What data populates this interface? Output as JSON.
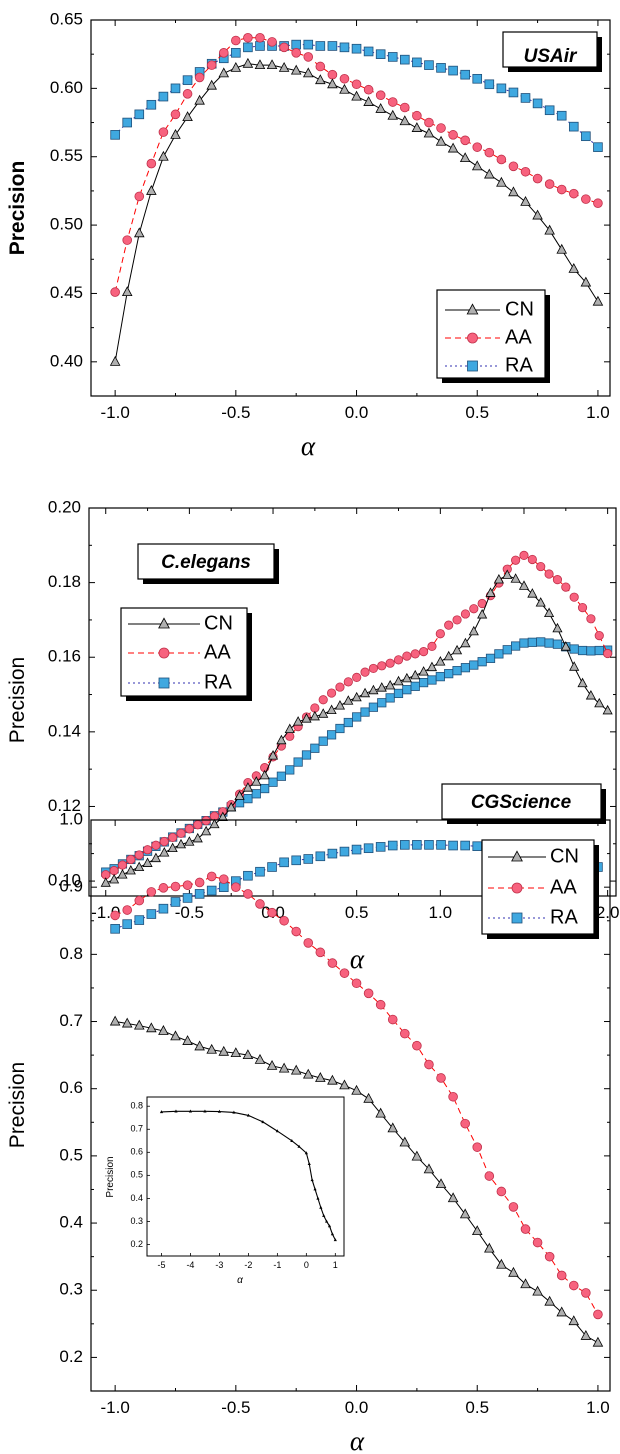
{
  "chart_data": [
    {
      "type": "line",
      "tag": "USAir",
      "xlabel": "α",
      "ylabel": "Precision",
      "xlim": [
        -1.1,
        1.05
      ],
      "ylim": [
        0.375,
        0.65
      ],
      "xticks": [
        -1.0,
        -0.5,
        0.0,
        0.5,
        1.0
      ],
      "xtick_labels": [
        "-1.0",
        "-0.5",
        "0.0",
        "0.5",
        "1.0"
      ],
      "yticks": [
        0.4,
        0.45,
        0.5,
        0.55,
        0.6,
        0.65
      ],
      "ytick_labels": [
        "0.40",
        "0.45",
        "0.50",
        "0.55",
        "0.60",
        "0.65"
      ],
      "legend": [
        "CN",
        "AA",
        "RA"
      ],
      "legend_position": "bottom-right",
      "x": [
        -1.0,
        -0.95,
        -0.9,
        -0.85,
        -0.8,
        -0.75,
        -0.7,
        -0.65,
        -0.6,
        -0.55,
        -0.5,
        -0.45,
        -0.4,
        -0.35,
        -0.3,
        -0.25,
        -0.2,
        -0.15,
        -0.1,
        -0.05,
        0.0,
        0.05,
        0.1,
        0.15,
        0.2,
        0.25,
        0.3,
        0.35,
        0.4,
        0.45,
        0.5,
        0.55,
        0.6,
        0.65,
        0.7,
        0.75,
        0.8,
        0.85,
        0.9,
        0.95,
        1.0
      ],
      "series": [
        {
          "name": "CN",
          "values": [
            0.4,
            0.451,
            0.494,
            0.525,
            0.55,
            0.566,
            0.579,
            0.591,
            0.602,
            0.611,
            0.615,
            0.618,
            0.617,
            0.617,
            0.615,
            0.613,
            0.611,
            0.606,
            0.603,
            0.599,
            0.594,
            0.59,
            0.585,
            0.58,
            0.576,
            0.571,
            0.567,
            0.561,
            0.556,
            0.549,
            0.543,
            0.537,
            0.531,
            0.524,
            0.517,
            0.507,
            0.496,
            0.482,
            0.468,
            0.458,
            0.444
          ]
        },
        {
          "name": "AA",
          "values": [
            0.451,
            0.489,
            0.521,
            0.545,
            0.568,
            0.581,
            0.596,
            0.608,
            0.617,
            0.626,
            0.635,
            0.637,
            0.637,
            0.634,
            0.63,
            0.626,
            0.623,
            0.616,
            0.61,
            0.607,
            0.603,
            0.599,
            0.595,
            0.59,
            0.586,
            0.58,
            0.575,
            0.571,
            0.566,
            0.562,
            0.557,
            0.553,
            0.548,
            0.543,
            0.539,
            0.534,
            0.53,
            0.526,
            0.523,
            0.519,
            0.516
          ]
        },
        {
          "name": "RA",
          "values": [
            0.566,
            0.575,
            0.581,
            0.588,
            0.594,
            0.6,
            0.606,
            0.612,
            0.618,
            0.622,
            0.626,
            0.63,
            0.631,
            0.631,
            0.631,
            0.632,
            0.632,
            0.631,
            0.631,
            0.63,
            0.629,
            0.627,
            0.625,
            0.623,
            0.621,
            0.619,
            0.617,
            0.615,
            0.613,
            0.61,
            0.607,
            0.603,
            0.6,
            0.597,
            0.593,
            0.589,
            0.584,
            0.58,
            0.572,
            0.565,
            0.557
          ]
        }
      ]
    },
    {
      "type": "line",
      "tag": "C.elegans",
      "xlabel": "α",
      "ylabel": "Precision",
      "xlim": [
        -1.1,
        2.05
      ],
      "ylim": [
        0.096,
        0.2
      ],
      "xticks": [
        -1.0,
        -0.5,
        0.0,
        0.5,
        1.0,
        1.5,
        2.0
      ],
      "xtick_labels": [
        "-1.0",
        "-0.5",
        "0.0",
        "0.5",
        "1.0",
        "1.5",
        "2.0"
      ],
      "yticks": [
        0.1,
        0.12,
        0.14,
        0.16,
        0.18,
        0.2
      ],
      "ytick_labels": [
        "0.10",
        "0.12",
        "0.14",
        "0.16",
        "0.18",
        "0.20"
      ],
      "legend": [
        "CN",
        "AA",
        "RA"
      ],
      "legend_position": "top-left",
      "x": [
        -1.0,
        -0.95,
        -0.9,
        -0.85,
        -0.8,
        -0.75,
        -0.7,
        -0.65,
        -0.6,
        -0.55,
        -0.5,
        -0.45,
        -0.4,
        -0.35,
        -0.3,
        -0.25,
        -0.2,
        -0.15,
        -0.1,
        -0.05,
        0.0,
        0.05,
        0.1,
        0.15,
        0.2,
        0.25,
        0.3,
        0.35,
        0.4,
        0.45,
        0.5,
        0.55,
        0.6,
        0.65,
        0.7,
        0.75,
        0.8,
        0.85,
        0.9,
        0.95,
        1.0,
        1.05,
        1.1,
        1.15,
        1.2,
        1.25,
        1.3,
        1.35,
        1.4,
        1.45,
        1.5,
        1.55,
        1.6,
        1.65,
        1.7,
        1.75,
        1.8,
        1.85,
        1.9,
        1.95,
        2.0
      ],
      "series": [
        {
          "name": "CN",
          "values": [
            0.0995,
            0.1004,
            0.1017,
            0.1028,
            0.1037,
            0.1048,
            0.1061,
            0.1076,
            0.1088,
            0.1098,
            0.1105,
            0.1114,
            0.1133,
            0.1152,
            0.1171,
            0.1197,
            0.1228,
            0.125,
            0.1266,
            0.1283,
            0.1336,
            0.1377,
            0.1407,
            0.1427,
            0.1435,
            0.1441,
            0.1448,
            0.1458,
            0.147,
            0.1483,
            0.1492,
            0.1503,
            0.1511,
            0.1518,
            0.1524,
            0.1535,
            0.1543,
            0.1551,
            0.1561,
            0.1573,
            0.1588,
            0.1602,
            0.1618,
            0.1637,
            0.1669,
            0.1714,
            0.1772,
            0.1808,
            0.182,
            0.181,
            0.1791,
            0.177,
            0.1746,
            0.1718,
            0.1677,
            0.1628,
            0.1574,
            0.153,
            0.1497,
            0.1476,
            0.1457
          ]
        },
        {
          "name": "AA",
          "values": [
            0.1017,
            0.1028,
            0.1043,
            0.1058,
            0.107,
            0.1084,
            0.1096,
            0.1106,
            0.1117,
            0.1128,
            0.114,
            0.1151,
            0.1162,
            0.1174,
            0.1186,
            0.1205,
            0.1233,
            0.1264,
            0.1282,
            0.1304,
            0.1333,
            0.1362,
            0.1388,
            0.1414,
            0.144,
            0.1464,
            0.1486,
            0.1504,
            0.152,
            0.1534,
            0.1546,
            0.156,
            0.157,
            0.1577,
            0.1584,
            0.1593,
            0.1603,
            0.1609,
            0.1615,
            0.1629,
            0.1663,
            0.1686,
            0.17,
            0.1716,
            0.173,
            0.1744,
            0.1765,
            0.1799,
            0.1836,
            0.186,
            0.1873,
            0.1862,
            0.1843,
            0.1823,
            0.1808,
            0.1788,
            0.1761,
            0.1733,
            0.1703,
            0.1658,
            0.161
          ]
        },
        {
          "name": "RA",
          "values": [
            0.1024,
            0.1033,
            0.1046,
            0.1058,
            0.1068,
            0.108,
            0.1093,
            0.1105,
            0.1118,
            0.1129,
            0.1141,
            0.1152,
            0.1162,
            0.1175,
            0.1185,
            0.1199,
            0.121,
            0.1221,
            0.1234,
            0.1248,
            0.1265,
            0.1281,
            0.1298,
            0.1319,
            0.1338,
            0.1356,
            0.1375,
            0.1392,
            0.1409,
            0.1425,
            0.144,
            0.1453,
            0.1466,
            0.1478,
            0.1491,
            0.1503,
            0.1513,
            0.1522,
            0.1532,
            0.1539,
            0.1548,
            0.1556,
            0.1564,
            0.1572,
            0.1579,
            0.1588,
            0.1597,
            0.1609,
            0.162,
            0.163,
            0.1638,
            0.164,
            0.1641,
            0.1638,
            0.1635,
            0.1628,
            0.1622,
            0.1618,
            0.1617,
            0.1618,
            0.1619
          ]
        }
      ]
    },
    {
      "type": "line",
      "tag": "CGScience",
      "xlabel": "α",
      "ylabel": "Precision",
      "xlim": [
        -1.1,
        1.05
      ],
      "ylim": [
        0.15,
        1.0
      ],
      "xticks": [
        -1.0,
        -0.5,
        0.0,
        0.5,
        1.0
      ],
      "xtick_labels": [
        "-1.0",
        "-0.5",
        "0.0",
        "0.5",
        "1.0"
      ],
      "yticks": [
        0.2,
        0.3,
        0.4,
        0.5,
        0.6,
        0.7,
        0.8,
        0.9,
        1.0
      ],
      "ytick_labels": [
        "0.2",
        "0.3",
        "0.4",
        "0.5",
        "0.6",
        "0.7",
        "0.8",
        "0.9",
        "1.0"
      ],
      "legend": [
        "CN",
        "AA",
        "RA"
      ],
      "legend_position": "right",
      "x": [
        -1.0,
        -0.95,
        -0.9,
        -0.85,
        -0.8,
        -0.75,
        -0.7,
        -0.65,
        -0.6,
        -0.55,
        -0.5,
        -0.45,
        -0.4,
        -0.35,
        -0.3,
        -0.25,
        -0.2,
        -0.15,
        -0.1,
        -0.05,
        0.0,
        0.05,
        0.1,
        0.15,
        0.2,
        0.25,
        0.3,
        0.35,
        0.4,
        0.45,
        0.5,
        0.55,
        0.6,
        0.65,
        0.7,
        0.75,
        0.8,
        0.85,
        0.9,
        0.95,
        1.0
      ],
      "series": [
        {
          "name": "CN",
          "values": [
            0.7,
            0.697,
            0.694,
            0.69,
            0.686,
            0.678,
            0.671,
            0.663,
            0.658,
            0.655,
            0.653,
            0.65,
            0.643,
            0.634,
            0.63,
            0.627,
            0.621,
            0.616,
            0.612,
            0.605,
            0.597,
            0.585,
            0.563,
            0.541,
            0.52,
            0.499,
            0.48,
            0.458,
            0.437,
            0.413,
            0.388,
            0.362,
            0.338,
            0.326,
            0.309,
            0.298,
            0.283,
            0.267,
            0.254,
            0.232,
            0.222
          ]
        },
        {
          "name": "AA",
          "values": [
            0.858,
            0.866,
            0.88,
            0.893,
            0.899,
            0.901,
            0.903,
            0.907,
            0.916,
            0.912,
            0.9,
            0.89,
            0.875,
            0.862,
            0.85,
            0.834,
            0.817,
            0.803,
            0.787,
            0.772,
            0.757,
            0.742,
            0.725,
            0.703,
            0.682,
            0.664,
            0.636,
            0.616,
            0.588,
            0.548,
            0.513,
            0.47,
            0.447,
            0.424,
            0.391,
            0.371,
            0.35,
            0.322,
            0.307,
            0.296,
            0.264
          ]
        },
        {
          "name": "RA",
          "values": [
            0.838,
            0.845,
            0.851,
            0.86,
            0.868,
            0.878,
            0.884,
            0.89,
            0.895,
            0.9,
            0.909,
            0.917,
            0.923,
            0.93,
            0.937,
            0.94,
            0.942,
            0.946,
            0.95,
            0.953,
            0.956,
            0.958,
            0.96,
            0.962,
            0.963,
            0.963,
            0.963,
            0.963,
            0.962,
            0.962,
            0.961,
            0.96,
            0.958,
            0.958,
            0.957,
            0.956,
            0.954,
            0.953,
            0.948,
            0.942,
            0.93
          ]
        }
      ],
      "inset": {
        "type": "line",
        "xlabel": "α",
        "ylabel": "Precision",
        "xlim": [
          -5.5,
          1.3
        ],
        "ylim": [
          0.15,
          0.84
        ],
        "xticks": [
          -5,
          -4,
          -3,
          -2,
          -1,
          0,
          1
        ],
        "xtick_labels": [
          "-5",
          "-4",
          "-3",
          "-2",
          "-1",
          "0",
          "1"
        ],
        "yticks": [
          0.2,
          0.3,
          0.4,
          0.5,
          0.6,
          0.7,
          0.8
        ],
        "ytick_labels": [
          "0.2",
          "0.3",
          "0.4",
          "0.5",
          "0.6",
          "0.7",
          "0.8"
        ],
        "x": [
          -5.0,
          -4.5,
          -4.0,
          -3.5,
          -3.0,
          -2.5,
          -2.0,
          -1.5,
          -1.0,
          -0.5,
          -0.25,
          0.0,
          0.1,
          0.2,
          0.3,
          0.4,
          0.5,
          0.6,
          0.7,
          0.8,
          0.9,
          1.0
        ],
        "values": [
          0.775,
          0.778,
          0.778,
          0.778,
          0.777,
          0.773,
          0.76,
          0.732,
          0.692,
          0.65,
          0.625,
          0.597,
          0.55,
          0.48,
          0.44,
          0.4,
          0.36,
          0.325,
          0.3,
          0.28,
          0.245,
          0.22
        ]
      }
    }
  ],
  "colors": {
    "CN": "#000000",
    "AA": "#ff0000",
    "RA": "#3030b0",
    "CN_marker": "#b0b0b0",
    "AA_marker": "#f7627e",
    "RA_marker": "#3fa8e0"
  }
}
